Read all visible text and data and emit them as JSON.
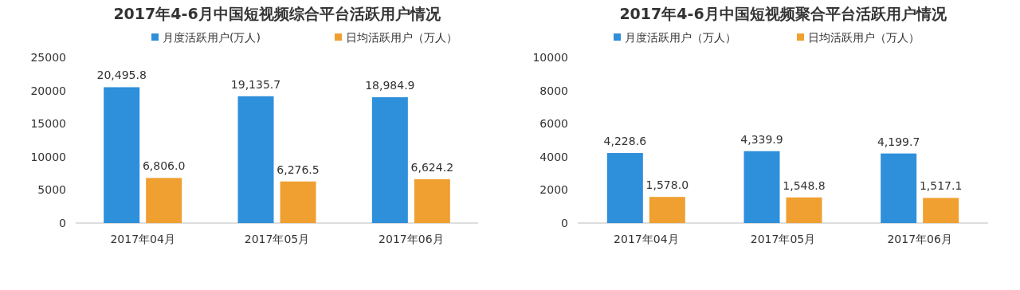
{
  "chart_data": [
    {
      "type": "bar",
      "title": "2017年4-6月中国短视频综合平台活跃用户情况",
      "categories": [
        "2017年04月",
        "2017年05月",
        "2017年06月"
      ],
      "series": [
        {
          "name": "月度活跃用户(万人)",
          "color": "#2e8fdb",
          "values": [
            20495.8,
            19135.7,
            18984.9
          ]
        },
        {
          "name": "日均活跃用户（万人）",
          "color": "#f0a030",
          "values": [
            6806.0,
            6276.5,
            6624.2
          ]
        }
      ],
      "value_labels": [
        [
          "20,495.8",
          "19,135.7",
          "18,984.9"
        ],
        [
          "6,806.0",
          "6,276.5",
          "6,624.2"
        ]
      ],
      "ylim": [
        0,
        25000
      ],
      "yticks": [
        0,
        5000,
        10000,
        15000,
        20000,
        25000
      ],
      "legend": "top",
      "grid": false
    },
    {
      "type": "bar",
      "title": "2017年4-6月中国短视频聚合平台活跃用户情况",
      "categories": [
        "2017年04月",
        "2017年05月",
        "2017年06月"
      ],
      "series": [
        {
          "name": "月度活跃用户（万人）",
          "color": "#2e8fdb",
          "values": [
            4228.6,
            4339.9,
            4199.7
          ]
        },
        {
          "name": "日均活跃用户（万人）",
          "color": "#f0a030",
          "values": [
            1578.0,
            1548.8,
            1517.1
          ]
        }
      ],
      "value_labels": [
        [
          "4,228.6",
          "4,339.9",
          "4,199.7"
        ],
        [
          "1,578.0",
          "1,548.8",
          "1,517.1"
        ]
      ],
      "ylim": [
        0,
        10000
      ],
      "yticks": [
        0,
        2000,
        4000,
        6000,
        8000,
        10000
      ],
      "legend": "top",
      "grid": false
    }
  ]
}
